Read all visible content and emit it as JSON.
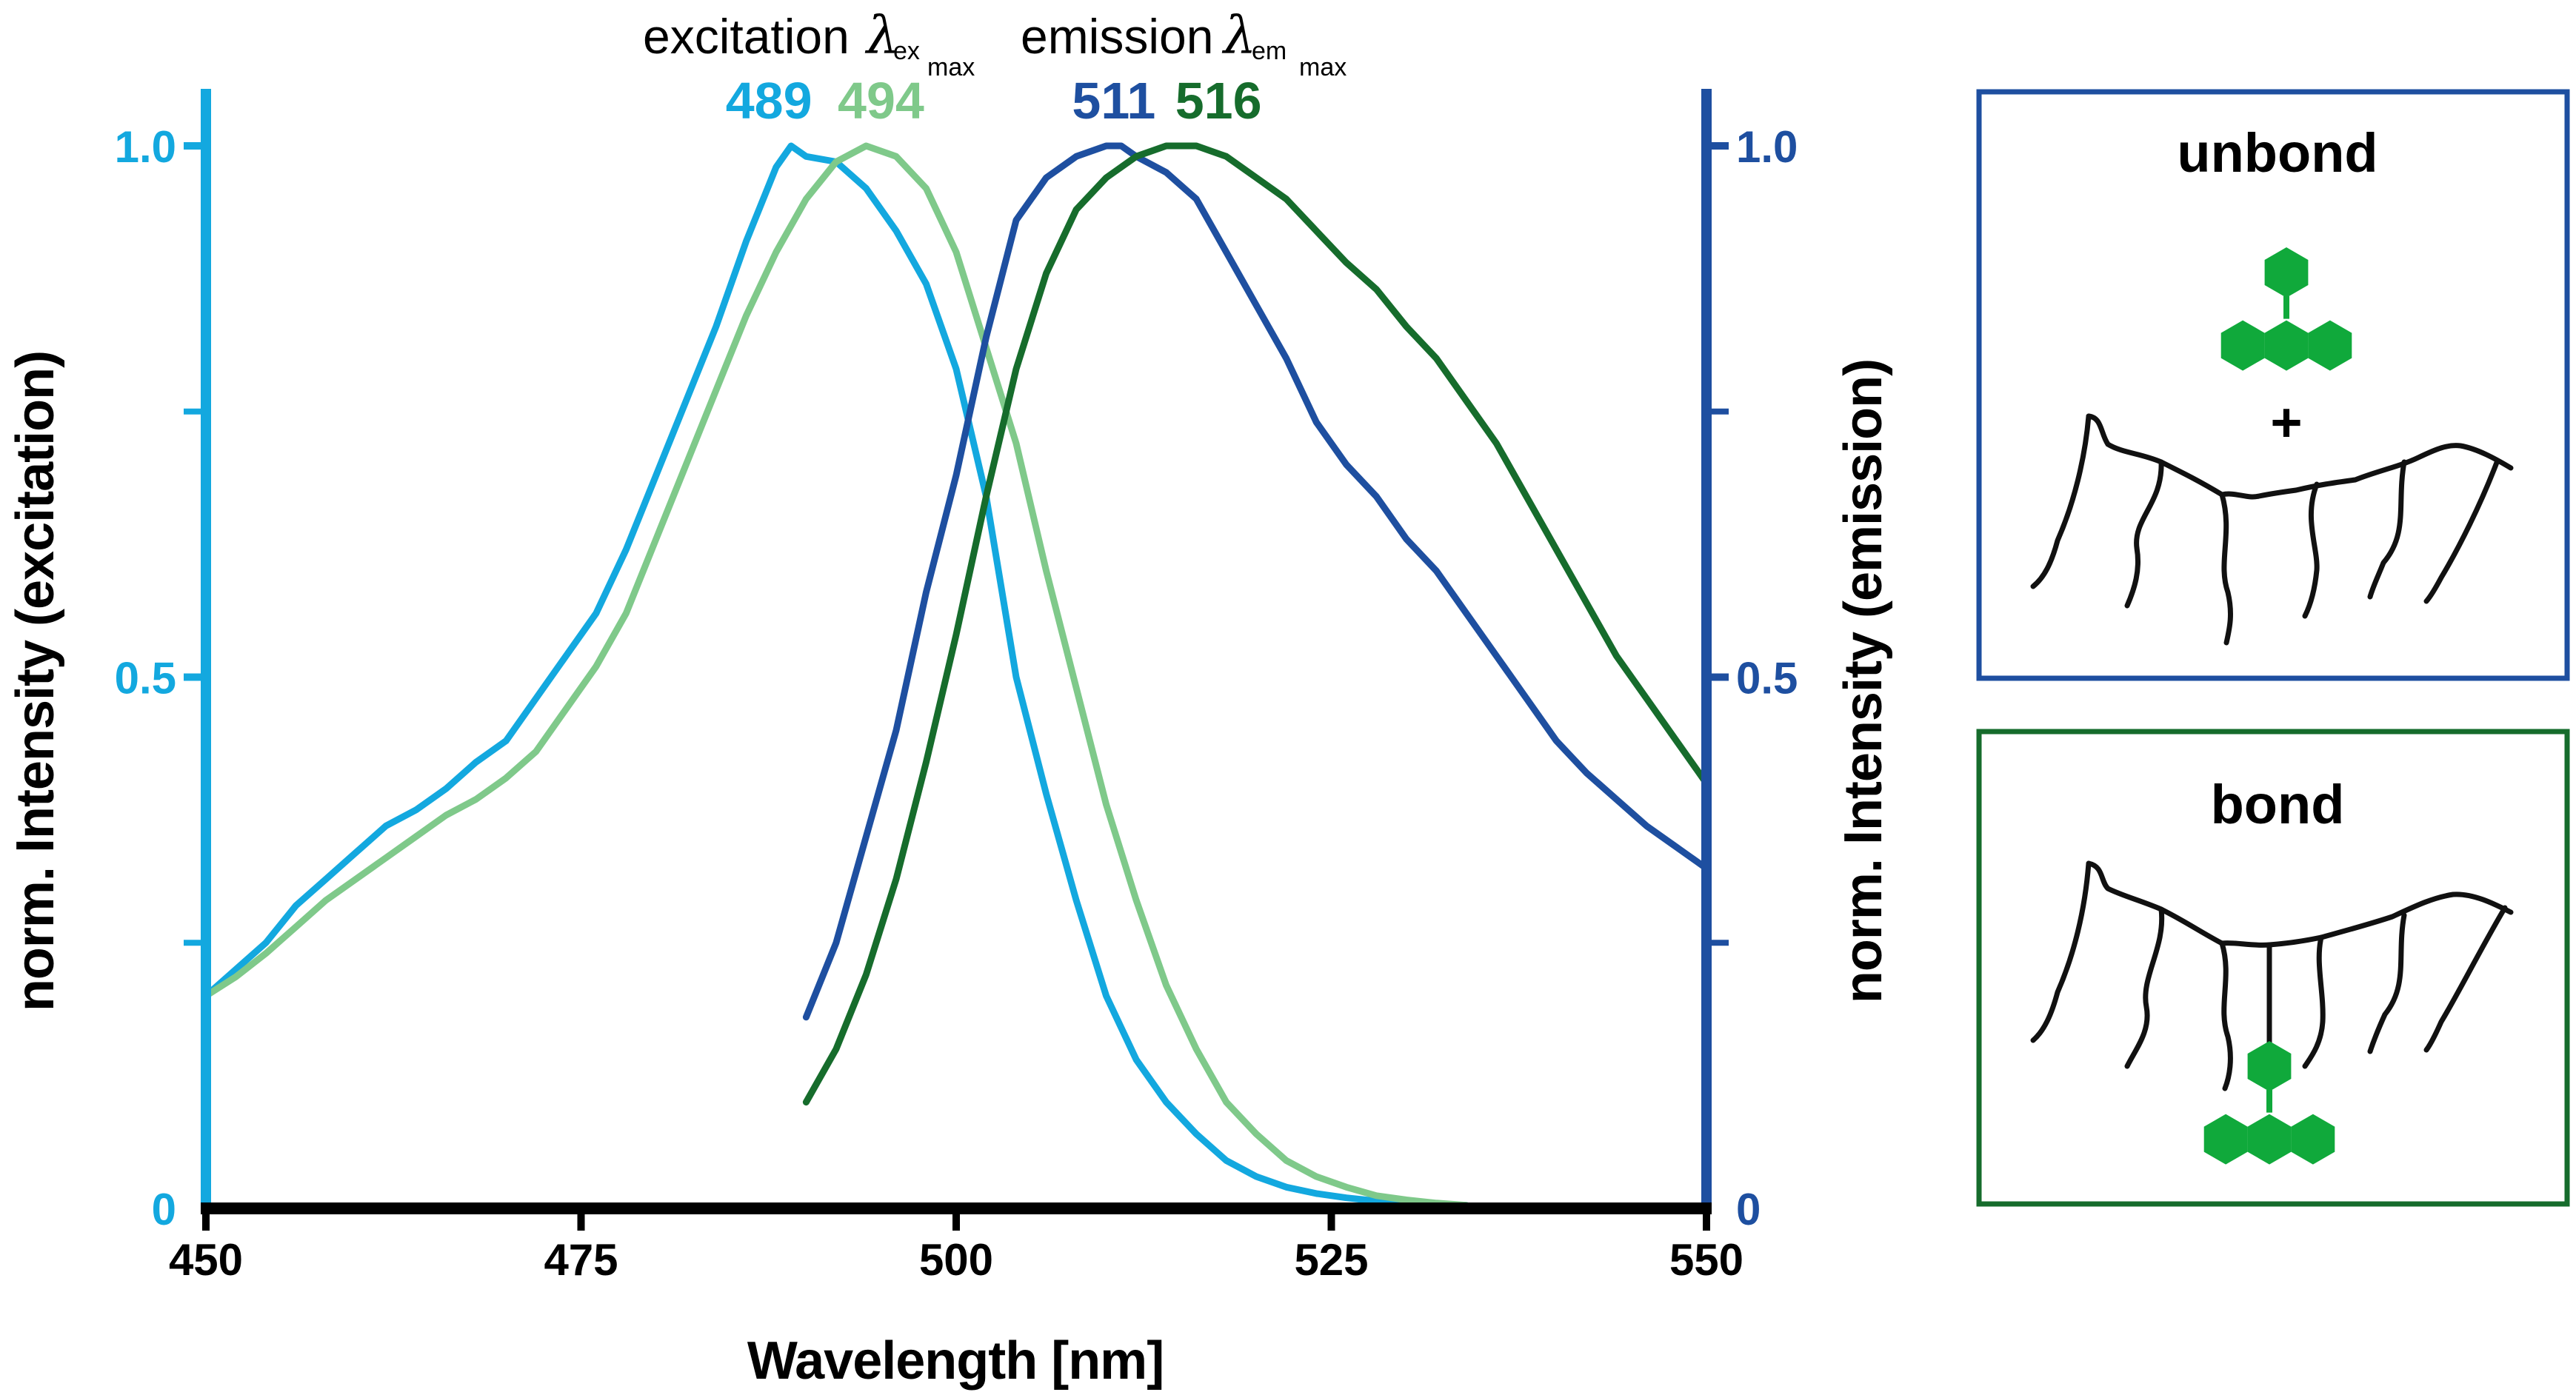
{
  "chart_data": {
    "type": "line",
    "xlabel": "Wavelength [nm]",
    "ylabel_left": "norm. Intensity (excitation)",
    "ylabel_right": "norm. Intensity (emission)",
    "xlim": [
      450,
      550
    ],
    "ylim": [
      0,
      1.0
    ],
    "x_ticks": [
      "450",
      "475",
      "500",
      "525",
      "550"
    ],
    "y_ticks_left": [
      "0",
      "0.5",
      "1.0"
    ],
    "y_ticks_right": [
      "0",
      "0.5",
      "1.0"
    ],
    "grid": false,
    "colors": {
      "excitation_unbond": "#13a8df",
      "excitation_bond": "#7fc98a",
      "emission_unbond": "#1e4fa0",
      "emission_bond": "#166c2c",
      "axis_left": "#13a8df",
      "axis_right": "#1e4fa0",
      "axis_bottom": "#000000",
      "fluorophore": "#10a93b"
    },
    "annotations": {
      "excitation": {
        "label": "excitation",
        "symbol": "λ",
        "sub": "ex",
        "subsub": "max"
      },
      "emission": {
        "label": "emission",
        "symbol": "λ",
        "sub": "em",
        "subsub": "max"
      },
      "peaks": [
        {
          "label": "489",
          "x": 489,
          "series": "excitation_unbond"
        },
        {
          "label": "494",
          "x": 494,
          "series": "excitation_bond"
        },
        {
          "label": "511",
          "x": 511,
          "series": "emission_unbond"
        },
        {
          "label": "516",
          "x": 516,
          "series": "emission_bond"
        }
      ]
    },
    "series": [
      {
        "name": "excitation_unbond",
        "axis": "left",
        "x": [
          450,
          452,
          454,
          456,
          458,
          460,
          462,
          464,
          466,
          468,
          470,
          472,
          474,
          476,
          478,
          480,
          482,
          484,
          486,
          488,
          489,
          490,
          492,
          494,
          496,
          498,
          500,
          502,
          504,
          506,
          508,
          510,
          512,
          514,
          516,
          518,
          520,
          522,
          524,
          526,
          528,
          530,
          532,
          534
        ],
        "values": [
          0.2,
          0.225,
          0.25,
          0.285,
          0.31,
          0.335,
          0.36,
          0.375,
          0.395,
          0.42,
          0.44,
          0.48,
          0.52,
          0.56,
          0.62,
          0.69,
          0.76,
          0.83,
          0.91,
          0.98,
          1.0,
          0.99,
          0.985,
          0.96,
          0.92,
          0.87,
          0.79,
          0.67,
          0.5,
          0.39,
          0.29,
          0.2,
          0.14,
          0.1,
          0.07,
          0.045,
          0.03,
          0.02,
          0.014,
          0.01,
          0.007,
          0.005,
          0.004,
          0.003
        ]
      },
      {
        "name": "excitation_bond",
        "axis": "left",
        "x": [
          450,
          452,
          454,
          456,
          458,
          460,
          462,
          464,
          466,
          468,
          470,
          472,
          474,
          476,
          478,
          480,
          482,
          484,
          486,
          488,
          490,
          492,
          494,
          496,
          498,
          500,
          502,
          504,
          506,
          508,
          510,
          512,
          514,
          516,
          518,
          520,
          522,
          524,
          526,
          528,
          530,
          532,
          534
        ],
        "values": [
          0.2,
          0.218,
          0.24,
          0.265,
          0.29,
          0.31,
          0.33,
          0.35,
          0.37,
          0.385,
          0.405,
          0.43,
          0.47,
          0.51,
          0.56,
          0.63,
          0.7,
          0.77,
          0.84,
          0.9,
          0.95,
          0.985,
          1.0,
          0.99,
          0.96,
          0.9,
          0.81,
          0.72,
          0.6,
          0.49,
          0.38,
          0.29,
          0.21,
          0.15,
          0.1,
          0.07,
          0.045,
          0.03,
          0.02,
          0.012,
          0.008,
          0.005,
          0.003
        ]
      },
      {
        "name": "emission_unbond",
        "axis": "right",
        "x": [
          490,
          492,
          494,
          496,
          498,
          500,
          502,
          504,
          506,
          508,
          510,
          511,
          512,
          514,
          516,
          518,
          520,
          522,
          524,
          526,
          528,
          530,
          532,
          534,
          536,
          538,
          540,
          542,
          544,
          546,
          548,
          550
        ],
        "values": [
          0.18,
          0.25,
          0.35,
          0.45,
          0.58,
          0.69,
          0.82,
          0.93,
          0.97,
          0.99,
          1.0,
          1.0,
          0.99,
          0.975,
          0.95,
          0.9,
          0.85,
          0.8,
          0.74,
          0.7,
          0.67,
          0.63,
          0.6,
          0.56,
          0.52,
          0.48,
          0.44,
          0.41,
          0.385,
          0.36,
          0.34,
          0.32
        ]
      },
      {
        "name": "emission_bond",
        "axis": "right",
        "x": [
          490,
          492,
          494,
          496,
          498,
          500,
          502,
          504,
          506,
          508,
          510,
          512,
          514,
          516,
          518,
          520,
          522,
          524,
          526,
          528,
          530,
          532,
          534,
          536,
          538,
          540,
          542,
          544,
          546,
          548,
          550
        ],
        "values": [
          0.1,
          0.15,
          0.22,
          0.31,
          0.42,
          0.54,
          0.67,
          0.79,
          0.88,
          0.94,
          0.97,
          0.99,
          1.0,
          1.0,
          0.99,
          0.97,
          0.95,
          0.92,
          0.89,
          0.865,
          0.83,
          0.8,
          0.76,
          0.72,
          0.67,
          0.62,
          0.57,
          0.52,
          0.48,
          0.44,
          0.4
        ]
      }
    ]
  },
  "panels": {
    "unbond": {
      "title": "unbond",
      "plus": "+",
      "border_color": "#1e4fa0"
    },
    "bond": {
      "title": "bond",
      "border_color": "#166c2c"
    }
  }
}
